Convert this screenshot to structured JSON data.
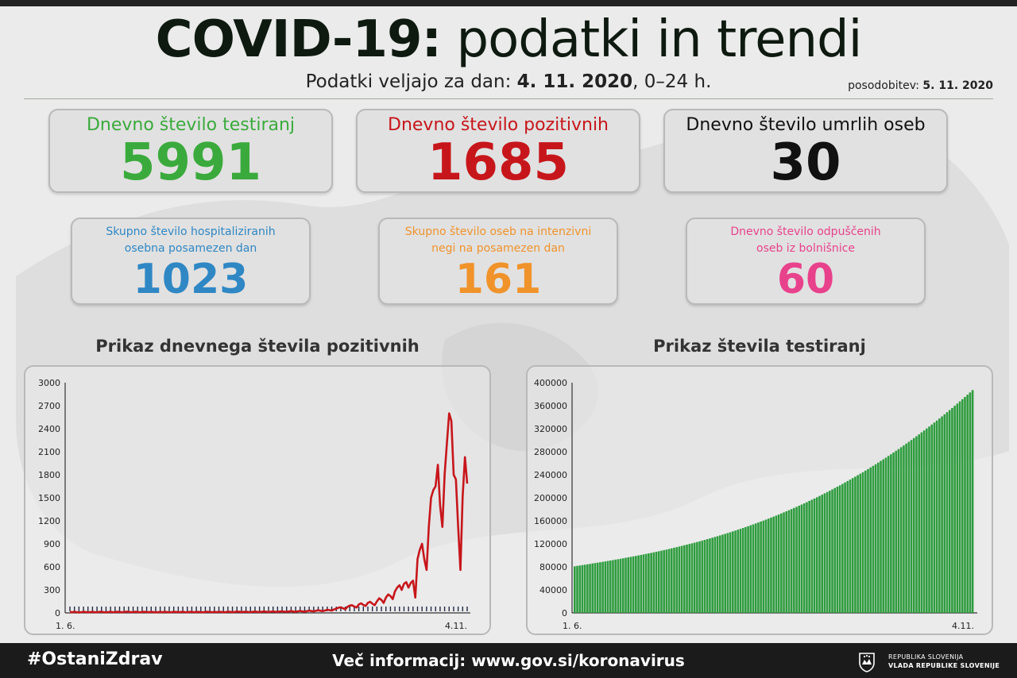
{
  "header": {
    "title_bold": "COVID-19:",
    "title_light": "podatki in trendi",
    "subtitle_prefix": "Podatki veljajo za dan:",
    "subtitle_date": "4. 11. 2020",
    "subtitle_suffix": ", 0–24 h.",
    "updated_label": "posodobitev:",
    "updated_date": "5. 11. 2020"
  },
  "stats": {
    "tests": {
      "label": "Dnevno število testiranj",
      "value": "5991",
      "color": "#3aaa3c"
    },
    "positive": {
      "label": "Dnevno število pozitivnih",
      "value": "1685",
      "color": "#c7161b"
    },
    "deaths": {
      "label": "Dnevno število umrlih oseb",
      "value": "30",
      "color": "#111111"
    },
    "hospitalized": {
      "label": "Skupno število hospitaliziranih\nosebna posamezen dan",
      "value": "1023",
      "color": "#2f87c4"
    },
    "icu": {
      "label": "Skupno število oseb na intenzivni\nnegi na posamezen dan",
      "value": "161",
      "color": "#f0932a"
    },
    "discharged": {
      "label": "Dnevno število odpuščenih\noseb iz bolnišnice",
      "value": "60",
      "color": "#e8428c"
    }
  },
  "chart_data": [
    {
      "type": "line",
      "title": "Prikaz dnevnega števila pozitivnih",
      "x_start": "1. 6.",
      "x_end": "4.11.",
      "ylim": [
        0,
        3000
      ],
      "yticks": [
        0,
        300,
        600,
        900,
        1200,
        1500,
        1800,
        2100,
        2400,
        2700,
        3000
      ],
      "series": [
        {
          "color": "#c7161b",
          "values": [
            12,
            8,
            15,
            10,
            6,
            9,
            14,
            11,
            7,
            10,
            13,
            9,
            8,
            12,
            16,
            10,
            7,
            11,
            15,
            9,
            10,
            14,
            12,
            8,
            11,
            17,
            13,
            9,
            10,
            14,
            11,
            8,
            12,
            15,
            10,
            9,
            13,
            11,
            7,
            10,
            12,
            9,
            14,
            11,
            8,
            10,
            13,
            12,
            9,
            11,
            15,
            10,
            8,
            12,
            14,
            9,
            11,
            13,
            10,
            8,
            12,
            16,
            11,
            9,
            13,
            10,
            14,
            12,
            9,
            11,
            15,
            13,
            10,
            12,
            18,
            14,
            11,
            13,
            16,
            12,
            10,
            14,
            17,
            13,
            11,
            15,
            19,
            14,
            12,
            16,
            20,
            15,
            13,
            18,
            22,
            16,
            14,
            19,
            24,
            18,
            15,
            21,
            26,
            20,
            17,
            23,
            30,
            24,
            20,
            28,
            34,
            28,
            24,
            31,
            40,
            36,
            30,
            44,
            55,
            68,
            72,
            60,
            48,
            80,
            95,
            100,
            82,
            70,
            110,
            125,
            105,
            90,
            130,
            145,
            120,
            100,
            150,
            190,
            170,
            130,
            200,
            240,
            220,
            180,
            280,
            330,
            360,
            300,
            380,
            400,
            330,
            390,
            420,
            200,
            700,
            820,
            900,
            700,
            560,
            1120,
            1500,
            1600,
            1650,
            1930,
            1400,
            1120,
            1800,
            2200,
            2600,
            2500,
            1800,
            1740,
            1130,
            560,
            1520,
            2030,
            1685
          ]
        }
      ]
    },
    {
      "type": "bar",
      "title": "Prikaz števila testiranj",
      "x_start": "1. 6.",
      "x_end": "4.11.",
      "ylim": [
        0,
        400000
      ],
      "yticks": [
        0,
        40000,
        80000,
        120000,
        160000,
        200000,
        240000,
        280000,
        320000,
        360000,
        400000
      ],
      "series": [
        {
          "color": "#2e9c3e",
          "start": 81000,
          "end": 387000
        }
      ]
    }
  ],
  "footer": {
    "hashtag": "#OstaniZdrav",
    "info": "Več informacij: www.gov.si/koronavirus",
    "gov_line1": "REPUBLIKA SLOVENIJA",
    "gov_line2": "VLADA REPUBLIKE SLOVENIJE"
  }
}
